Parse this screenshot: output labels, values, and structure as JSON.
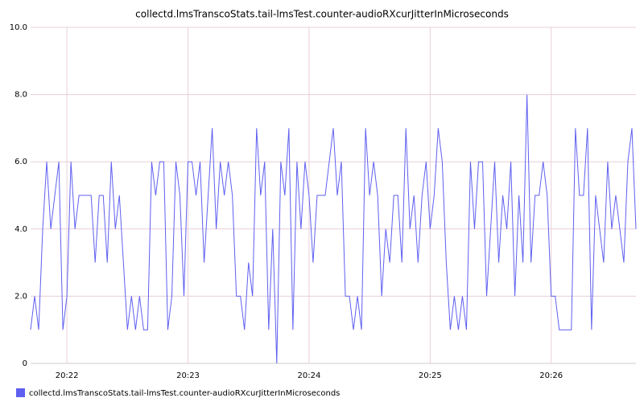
{
  "chart_data": {
    "type": "line",
    "title": "collectd.lmsTranscoStats.tail-lmsTest.counter-audioRXcurJitterInMicroseconds",
    "x": [
      1302,
      1304,
      1306,
      1308,
      1310,
      1312,
      1314,
      1316,
      1318,
      1320,
      1322,
      1324,
      1326,
      1328,
      1330,
      1332,
      1334,
      1336,
      1338,
      1340,
      1342,
      1344,
      1346,
      1348,
      1350,
      1352,
      1354,
      1356,
      1358,
      1360,
      1362,
      1364,
      1366,
      1368,
      1370,
      1372,
      1374,
      1376,
      1378,
      1380,
      1382,
      1384,
      1386,
      1388,
      1390,
      1392,
      1394,
      1396,
      1398,
      1400,
      1402,
      1404,
      1406,
      1408,
      1410,
      1412,
      1414,
      1416,
      1418,
      1420,
      1422,
      1424,
      1426,
      1428,
      1430,
      1432,
      1434,
      1436,
      1438,
      1440,
      1442,
      1444,
      1446,
      1448,
      1450,
      1452,
      1454,
      1456,
      1458,
      1460,
      1462,
      1464,
      1466,
      1468,
      1470,
      1472,
      1474,
      1476,
      1478,
      1480,
      1482,
      1484,
      1486,
      1488,
      1490,
      1492,
      1494,
      1496,
      1498,
      1500,
      1502,
      1504,
      1506,
      1508,
      1510,
      1512,
      1514,
      1516,
      1518,
      1520,
      1522,
      1524,
      1526,
      1528,
      1530,
      1532,
      1534,
      1536,
      1538,
      1540,
      1542,
      1544,
      1546,
      1548,
      1550,
      1552,
      1554,
      1556,
      1558,
      1560,
      1562,
      1564,
      1566,
      1568,
      1570,
      1572,
      1574,
      1576,
      1578,
      1580,
      1582,
      1584,
      1586,
      1588,
      1590,
      1592,
      1594,
      1596,
      1598,
      1600,
      1602
    ],
    "series": [
      {
        "name": "collectd.lmsTranscoStats.tail-lmsTest.counter-audioRXcurJitterInMicroseconds",
        "color": "#5f5ff0",
        "values": [
          1,
          2,
          1,
          4,
          6,
          4,
          5,
          6,
          1,
          2,
          6,
          4,
          5,
          5,
          5,
          5,
          3,
          5,
          5,
          3,
          6,
          4,
          5,
          3,
          1,
          2,
          1,
          2,
          1,
          1,
          6,
          5,
          6,
          6,
          1,
          2,
          6,
          5,
          2,
          6,
          6,
          5,
          6,
          3,
          5,
          7,
          4,
          6,
          5,
          6,
          5,
          2,
          2,
          1,
          3,
          2,
          7,
          5,
          6,
          1,
          4,
          0,
          6,
          5,
          7,
          1,
          6,
          4,
          6,
          5,
          3,
          5,
          5,
          5,
          6,
          7,
          5,
          6,
          2,
          2,
          1,
          2,
          1,
          7,
          5,
          6,
          5,
          2,
          4,
          3,
          5,
          5,
          3,
          7,
          4,
          5,
          3,
          5,
          6,
          4,
          5,
          7,
          6,
          3,
          1,
          2,
          1,
          2,
          1,
          6,
          4,
          6,
          6,
          2,
          4,
          6,
          3,
          5,
          4,
          6,
          2,
          5,
          3,
          8,
          3,
          5,
          5,
          6,
          5,
          2,
          2,
          1,
          1,
          1,
          1,
          7,
          5,
          5,
          7,
          1,
          5,
          4,
          3,
          6,
          4,
          5,
          4,
          3,
          6,
          7,
          4
        ]
      }
    ],
    "xlim": [
      1302,
      1602
    ],
    "xticks": [
      {
        "value": 1320,
        "label": "20:22"
      },
      {
        "value": 1380,
        "label": "20:23"
      },
      {
        "value": 1440,
        "label": "20:24"
      },
      {
        "value": 1500,
        "label": "20:25"
      },
      {
        "value": 1560,
        "label": "20:26"
      }
    ],
    "ylim": [
      0,
      10
    ],
    "yticks": [
      0,
      {
        "value": 2,
        "label": "2.0"
      },
      {
        "value": 4,
        "label": "4.0"
      },
      {
        "value": 6,
        "label": "6.0"
      },
      {
        "value": 8,
        "label": "8.0"
      },
      {
        "value": 10,
        "label": "10.0"
      }
    ],
    "grid": true
  }
}
